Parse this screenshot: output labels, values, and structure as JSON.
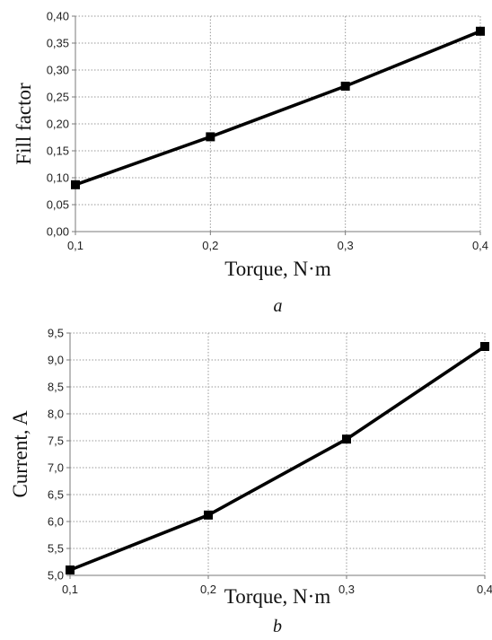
{
  "chart_data": [
    {
      "type": "line",
      "panel_label": "a",
      "xlabel": "Torque, N·m",
      "ylabel": "Fill factor",
      "xlim": [
        0.1,
        0.4
      ],
      "ylim": [
        0.0,
        0.4
      ],
      "x_ticks": [
        "0,1",
        "0,2",
        "0,3",
        "0,4"
      ],
      "y_ticks": [
        "0,00",
        "0,05",
        "0,10",
        "0,15",
        "0,20",
        "0,25",
        "0,30",
        "0,35",
        "0,40"
      ],
      "grid": true,
      "x": [
        0.1,
        0.2,
        0.3,
        0.4
      ],
      "series": [
        {
          "values": [
            0.087,
            0.176,
            0.27,
            0.372
          ],
          "color": "#000000",
          "marker": "square"
        }
      ]
    },
    {
      "type": "line",
      "panel_label": "b",
      "xlabel": "Torque, N·m",
      "ylabel": "Current, A",
      "xlim": [
        0.1,
        0.4
      ],
      "ylim": [
        5.0,
        9.5
      ],
      "x_ticks": [
        "0,1",
        "0,2",
        "0,3",
        "0,4"
      ],
      "y_ticks": [
        "5,0",
        "5,5",
        "6,0",
        "6,5",
        "7,0",
        "7,5",
        "8,0",
        "8,5",
        "9,0",
        "9,5"
      ],
      "grid": true,
      "x": [
        0.1,
        0.2,
        0.3,
        0.4
      ],
      "series": [
        {
          "values": [
            5.1,
            6.12,
            7.53,
            9.25
          ],
          "color": "#000000",
          "marker": "square"
        }
      ]
    }
  ]
}
